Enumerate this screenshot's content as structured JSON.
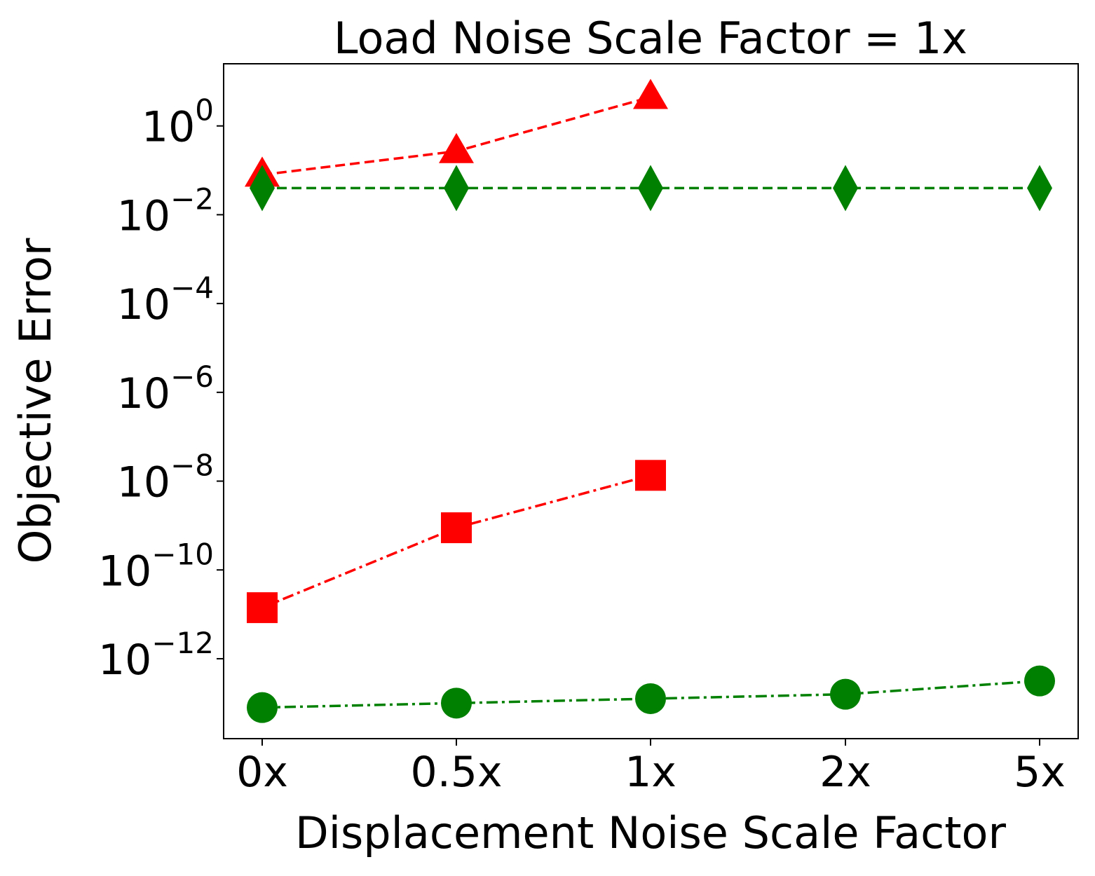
{
  "chart_data": {
    "type": "line",
    "title": "Load Noise Scale Factor = 1x",
    "xlabel": "Displacement Noise Scale Factor",
    "ylabel": "Objective Error",
    "yscale": "log",
    "ylim_log10": [
      -13.8,
      1.4
    ],
    "categories": [
      "0x",
      "0.5x",
      "1x",
      "2x",
      "5x"
    ],
    "yticks": [
      {
        "base": "10",
        "exp": "0",
        "log10": 0
      },
      {
        "base": "10",
        "exp": "−2",
        "log10": -2
      },
      {
        "base": "10",
        "exp": "−4",
        "log10": -4
      },
      {
        "base": "10",
        "exp": "−6",
        "log10": -6
      },
      {
        "base": "10",
        "exp": "−8",
        "log10": -8
      },
      {
        "base": "10",
        "exp": "−10",
        "log10": -10
      },
      {
        "base": "10",
        "exp": "−12",
        "log10": -12
      }
    ],
    "series": [
      {
        "name": "red-triangle",
        "color": "#ff0000",
        "marker": "triangle",
        "linestyle": "dashed",
        "log10_values": [
          -1.1,
          -0.57,
          0.65,
          null,
          null
        ]
      },
      {
        "name": "green-diamond",
        "color": "#008000",
        "marker": "diamond",
        "linestyle": "dashed",
        "log10_values": [
          -1.4,
          -1.4,
          -1.4,
          -1.4,
          -1.4
        ]
      },
      {
        "name": "red-square",
        "color": "#ff0000",
        "marker": "square",
        "linestyle": "dashdot",
        "log10_values": [
          -10.85,
          -9.05,
          -7.87,
          null,
          null
        ]
      },
      {
        "name": "green-circle",
        "color": "#008000",
        "marker": "circle",
        "linestyle": "dashdot",
        "log10_values": [
          -13.1,
          -13.0,
          -12.9,
          -12.8,
          -12.5
        ]
      }
    ]
  }
}
